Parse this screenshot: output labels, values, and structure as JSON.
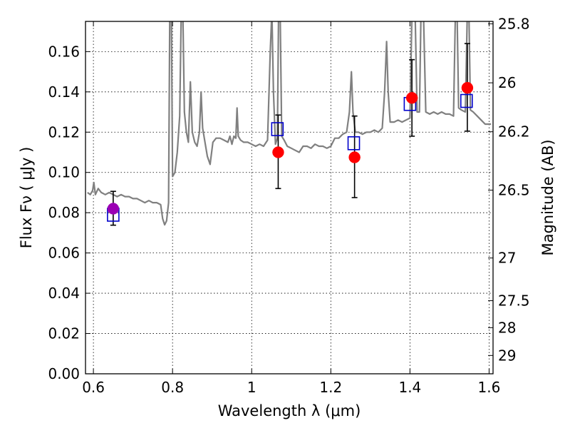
{
  "chart_data": {
    "type": "scatter",
    "title": "",
    "xlabel": "Wavelength  λ (μm)",
    "ylabel": "Flux  Fν  ( μJy )",
    "y2label": "Magnitude (AB)",
    "xlim": [
      0.58,
      1.61
    ],
    "ylim": [
      0.0,
      0.175
    ],
    "grid": true,
    "x_ticks": [
      0.6,
      0.8,
      1.0,
      1.2,
      1.4,
      1.6
    ],
    "x_tick_labels": [
      "0.6",
      "0.8",
      "1",
      "1.2",
      "1.4",
      "1.6"
    ],
    "y_ticks": [
      0.0,
      0.02,
      0.04,
      0.06,
      0.08,
      0.1,
      0.12,
      0.14,
      0.16
    ],
    "y_tick_labels": [
      "0.00",
      "0.02",
      "0.04",
      "0.06",
      "0.08",
      "0.10",
      "0.12",
      "0.14",
      "0.16"
    ],
    "y2_ticks": [
      {
        "label": "25.8",
        "flux": 0.1738
      },
      {
        "label": "26",
        "flux": 0.1445
      },
      {
        "label": "26.2",
        "flux": 0.1202
      },
      {
        "label": "26.5",
        "flux": 0.0912
      },
      {
        "label": "27",
        "flux": 0.0575
      },
      {
        "label": "27.5",
        "flux": 0.0363
      },
      {
        "label": "28",
        "flux": 0.0229
      },
      {
        "label": "29",
        "flux": 0.0091
      }
    ],
    "model_spectrum": {
      "color": "#808080",
      "points": [
        [
          0.585,
          0.09
        ],
        [
          0.592,
          0.089
        ],
        [
          0.598,
          0.091
        ],
        [
          0.601,
          0.095
        ],
        [
          0.605,
          0.089
        ],
        [
          0.612,
          0.092
        ],
        [
          0.62,
          0.09
        ],
        [
          0.63,
          0.089
        ],
        [
          0.64,
          0.09
        ],
        [
          0.65,
          0.089
        ],
        [
          0.66,
          0.088
        ],
        [
          0.67,
          0.089
        ],
        [
          0.68,
          0.088
        ],
        [
          0.69,
          0.088
        ],
        [
          0.7,
          0.087
        ],
        [
          0.71,
          0.087
        ],
        [
          0.72,
          0.086
        ],
        [
          0.73,
          0.085
        ],
        [
          0.74,
          0.086
        ],
        [
          0.75,
          0.085
        ],
        [
          0.76,
          0.085
        ],
        [
          0.77,
          0.084
        ],
        [
          0.775,
          0.077
        ],
        [
          0.78,
          0.074
        ],
        [
          0.785,
          0.076
        ],
        [
          0.79,
          0.085
        ],
        [
          0.793,
          0.18
        ],
        [
          0.797,
          0.18
        ],
        [
          0.8,
          0.098
        ],
        [
          0.806,
          0.1
        ],
        [
          0.812,
          0.11
        ],
        [
          0.818,
          0.128
        ],
        [
          0.822,
          0.18
        ],
        [
          0.826,
          0.18
        ],
        [
          0.83,
          0.13
        ],
        [
          0.835,
          0.12
        ],
        [
          0.84,
          0.115
        ],
        [
          0.845,
          0.145
        ],
        [
          0.85,
          0.12
        ],
        [
          0.856,
          0.115
        ],
        [
          0.862,
          0.113
        ],
        [
          0.868,
          0.12
        ],
        [
          0.872,
          0.14
        ],
        [
          0.876,
          0.122
        ],
        [
          0.882,
          0.115
        ],
        [
          0.888,
          0.108
        ],
        [
          0.895,
          0.104
        ],
        [
          0.902,
          0.115
        ],
        [
          0.91,
          0.117
        ],
        [
          0.92,
          0.117
        ],
        [
          0.93,
          0.116
        ],
        [
          0.94,
          0.115
        ],
        [
          0.945,
          0.118
        ],
        [
          0.95,
          0.114
        ],
        [
          0.955,
          0.118
        ],
        [
          0.96,
          0.117
        ],
        [
          0.963,
          0.132
        ],
        [
          0.966,
          0.118
        ],
        [
          0.972,
          0.116
        ],
        [
          0.98,
          0.115
        ],
        [
          0.99,
          0.115
        ],
        [
          1.0,
          0.114
        ],
        [
          1.01,
          0.113
        ],
        [
          1.02,
          0.114
        ],
        [
          1.03,
          0.113
        ],
        [
          1.04,
          0.116
        ],
        [
          1.047,
          0.16
        ],
        [
          1.051,
          0.18
        ],
        [
          1.055,
          0.14
        ],
        [
          1.06,
          0.114
        ],
        [
          1.065,
          0.117
        ],
        [
          1.068,
          0.18
        ],
        [
          1.072,
          0.18
        ],
        [
          1.076,
          0.118
        ],
        [
          1.082,
          0.116
        ],
        [
          1.09,
          0.113
        ],
        [
          1.1,
          0.112
        ],
        [
          1.11,
          0.111
        ],
        [
          1.12,
          0.11
        ],
        [
          1.13,
          0.113
        ],
        [
          1.14,
          0.113
        ],
        [
          1.15,
          0.112
        ],
        [
          1.16,
          0.114
        ],
        [
          1.17,
          0.113
        ],
        [
          1.18,
          0.113
        ],
        [
          1.19,
          0.112
        ],
        [
          1.2,
          0.113
        ],
        [
          1.21,
          0.117
        ],
        [
          1.22,
          0.117
        ],
        [
          1.23,
          0.119
        ],
        [
          1.24,
          0.12
        ],
        [
          1.247,
          0.13
        ],
        [
          1.252,
          0.15
        ],
        [
          1.256,
          0.13
        ],
        [
          1.262,
          0.12
        ],
        [
          1.27,
          0.12
        ],
        [
          1.28,
          0.119
        ],
        [
          1.29,
          0.12
        ],
        [
          1.3,
          0.12
        ],
        [
          1.31,
          0.121
        ],
        [
          1.32,
          0.12
        ],
        [
          1.33,
          0.122
        ],
        [
          1.336,
          0.14
        ],
        [
          1.341,
          0.165
        ],
        [
          1.345,
          0.14
        ],
        [
          1.35,
          0.125
        ],
        [
          1.36,
          0.125
        ],
        [
          1.37,
          0.126
        ],
        [
          1.38,
          0.125
        ],
        [
          1.39,
          0.126
        ],
        [
          1.4,
          0.127
        ],
        [
          1.405,
          0.18
        ],
        [
          1.409,
          0.18
        ],
        [
          1.413,
          0.18
        ],
        [
          1.418,
          0.13
        ],
        [
          1.424,
          0.13
        ],
        [
          1.428,
          0.18
        ],
        [
          1.434,
          0.18
        ],
        [
          1.44,
          0.13
        ],
        [
          1.45,
          0.129
        ],
        [
          1.46,
          0.13
        ],
        [
          1.47,
          0.129
        ],
        [
          1.48,
          0.13
        ],
        [
          1.49,
          0.129
        ],
        [
          1.5,
          0.129
        ],
        [
          1.51,
          0.128
        ],
        [
          1.515,
          0.18
        ],
        [
          1.519,
          0.18
        ],
        [
          1.523,
          0.132
        ],
        [
          1.53,
          0.131
        ],
        [
          1.54,
          0.13
        ],
        [
          1.545,
          0.18
        ],
        [
          1.549,
          0.18
        ],
        [
          1.553,
          0.131
        ],
        [
          1.56,
          0.13
        ],
        [
          1.57,
          0.128
        ],
        [
          1.58,
          0.126
        ],
        [
          1.59,
          0.124
        ],
        [
          1.605,
          0.124
        ]
      ]
    },
    "observed": [
      {
        "x": 0.65,
        "y": 0.082,
        "err_low": 0.0738,
        "err_high": 0.0906,
        "color": "#9b00b4"
      },
      {
        "x": 1.067,
        "y": 0.11,
        "err_low": 0.092,
        "err_high": 0.1285,
        "color": "#ff0000"
      },
      {
        "x": 1.26,
        "y": 0.1075,
        "err_low": 0.0875,
        "err_high": 0.128,
        "color": "#ff0000"
      },
      {
        "x": 1.405,
        "y": 0.137,
        "err_low": 0.118,
        "err_high": 0.156,
        "color": "#ff0000"
      },
      {
        "x": 1.545,
        "y": 0.142,
        "err_low": 0.1205,
        "err_high": 0.164,
        "color": "#ff0000"
      }
    ],
    "model_photometry": {
      "color": "#0000cc",
      "points": [
        [
          0.65,
          0.079
        ],
        [
          1.065,
          0.1215
        ],
        [
          1.258,
          0.1145
        ],
        [
          1.4,
          0.134
        ],
        [
          1.543,
          0.1355
        ]
      ]
    }
  }
}
